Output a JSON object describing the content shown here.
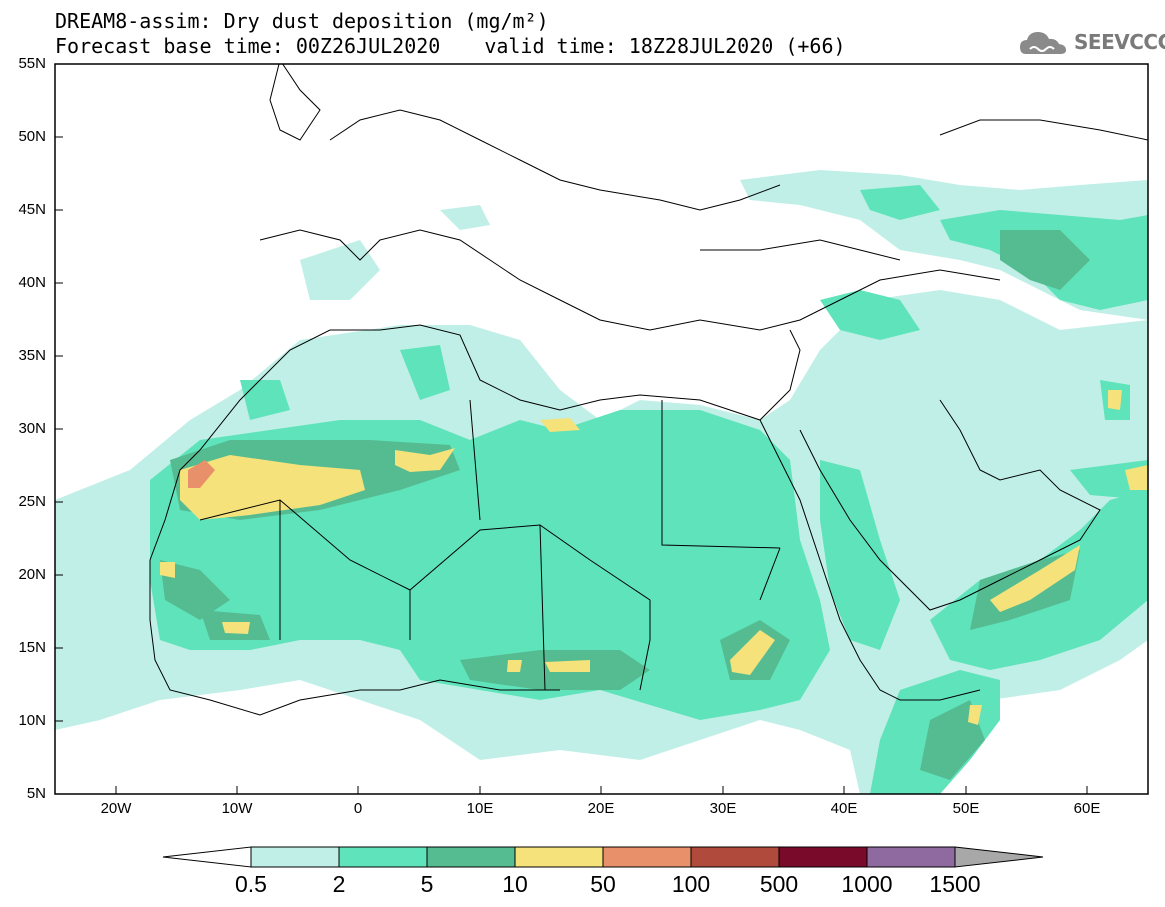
{
  "header": {
    "title": "DREAM8-assim: Dry dust deposition (mg/m²)",
    "base_time": "Forecast base time: 00Z26JUL2020",
    "valid_time": "valid time: 18Z28JUL2020 (+66)",
    "logo_text": "SEEVCCC",
    "logo_icon": "cloud-logo-icon"
  },
  "map": {
    "projection": "lat-lon",
    "lon_range": [
      -25,
      65
    ],
    "lat_range": [
      5,
      55
    ],
    "lat_labels": [
      "55N",
      "50N",
      "45N",
      "40N",
      "35N",
      "30N",
      "25N",
      "20N",
      "15N",
      "10N",
      "5N"
    ],
    "lon_labels": [
      "20W",
      "10W",
      "0",
      "10E",
      "20E",
      "30E",
      "40E",
      "50E",
      "60E"
    ]
  },
  "colorbar": {
    "labels": [
      "0.5",
      "2",
      "5",
      "10",
      "50",
      "100",
      "500",
      "1000",
      "1500"
    ],
    "colors": [
      "#bfefe6",
      "#5fe3bb",
      "#55bc92",
      "#f5e27a",
      "#e8906a",
      "#b04a3c",
      "#7a0a2a",
      "#8e6aa0"
    ],
    "under_color": "#ffffff",
    "over_color": "#a8a8a8"
  }
}
